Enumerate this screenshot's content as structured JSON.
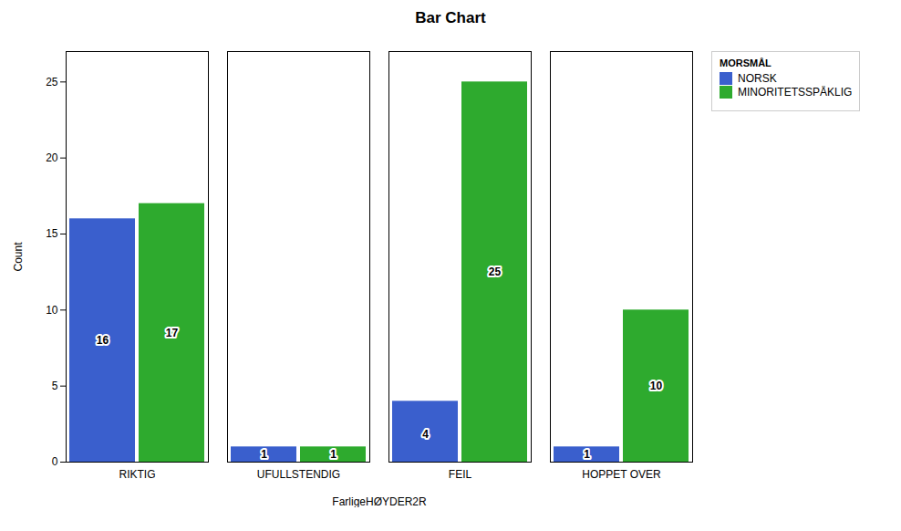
{
  "chart_data": {
    "type": "bar",
    "title": "Bar Chart",
    "xlabel": "FarligeHØYDER2R",
    "ylabel": "Count",
    "categories": [
      "RIKTIG",
      "UFULLSTENDIG",
      "FEIL",
      "HOPPET OVER"
    ],
    "series": [
      {
        "name": "NORSK",
        "color": "#3a5fcd",
        "values": [
          16,
          1,
          4,
          1
        ]
      },
      {
        "name": "MINORITETSSPÅKLIG",
        "color": "#2eaa2e",
        "values": [
          17,
          1,
          25,
          10
        ]
      }
    ],
    "ylim": [
      0,
      27
    ],
    "yticks": [
      0,
      5,
      10,
      15,
      20,
      25
    ],
    "grid": false,
    "data_labels": true,
    "legend": "right",
    "legend_title": "MORSMÅL"
  }
}
